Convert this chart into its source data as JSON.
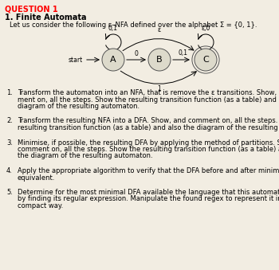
{
  "title": "QUESTION 1",
  "subtitle": "1. Finite Automata",
  "intro": "Let us consider the following ε–NFA defined over the alphabet Σ = {0, 1}.",
  "bg_color": "#f2ede2",
  "node_color": "#dddacb",
  "questions": [
    [
      "1.",
      "Transform the automaton into an NFA, that is remove the ε transitions. Show, and com-\nment on, all the steps. Show the resulting transition function (as a table) and also the\ndiagram of the resulting automaton."
    ],
    [
      "2.",
      "Transform the resulting NFA into a DFA. Show, and comment on, all the steps. Show the\nresulting transition function (as a table) and also the diagram of the resulting automaton."
    ],
    [
      "3.",
      "Minimise, if possible, the resulting DFA by applying the method of partitions. Show, and\ncomment on, all the steps. Show the resulting transition function (as a table) and also\nthe diagram of the resulting automaton."
    ],
    [
      "4.",
      "Apply the appropriate algorithm to verify that the DFA before and after minimisation are\nequivalent."
    ],
    [
      "5.",
      "Determine for the most minimal DFA available the language that this automaton accepts\nby finding its regular expression. Manipulate the found regex to represent it in the most\ncompact way."
    ]
  ]
}
